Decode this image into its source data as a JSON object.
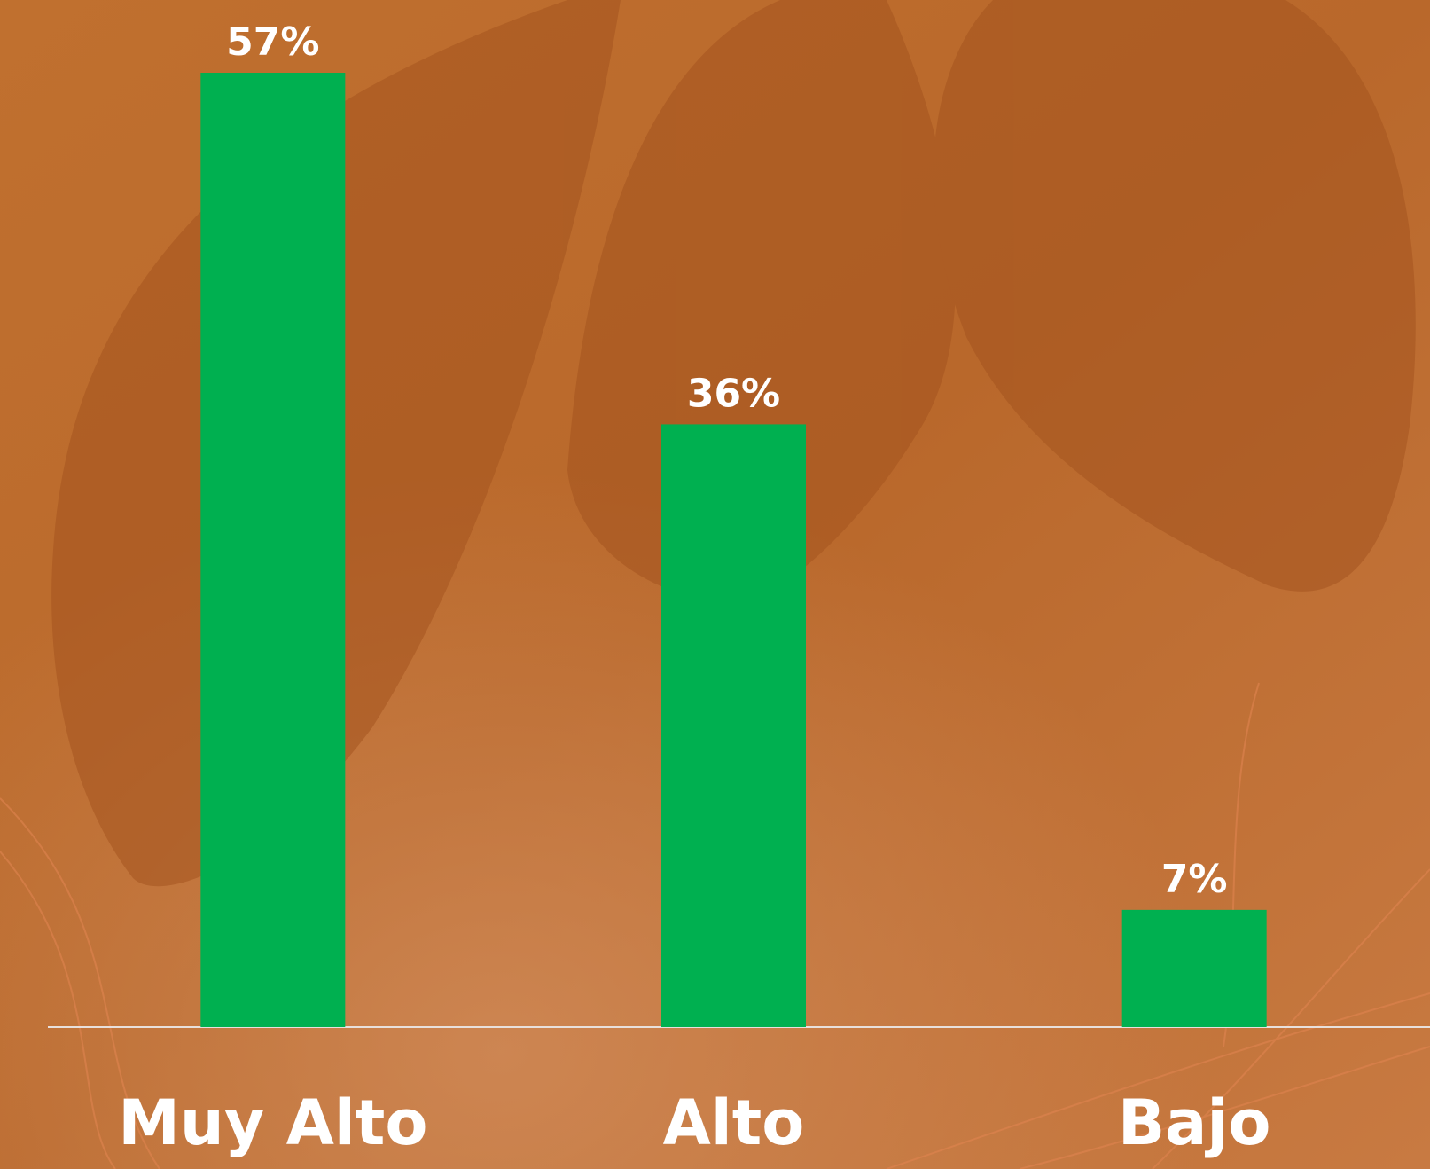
{
  "chart_data": {
    "type": "bar",
    "categories": [
      "Muy Alto",
      "Alto",
      "Bajo"
    ],
    "values": [
      57,
      36,
      7
    ],
    "value_labels": [
      "57%",
      "36%",
      "7%"
    ],
    "color": "#00b050",
    "ylim": [
      0,
      57
    ]
  }
}
